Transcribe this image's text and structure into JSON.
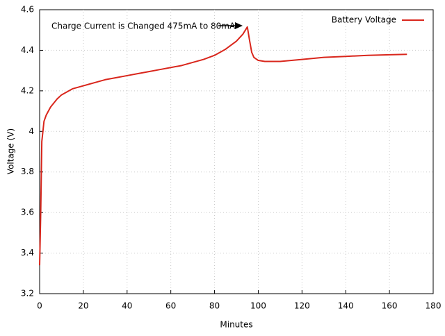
{
  "chart_data": {
    "type": "line",
    "xlabel": "Minutes",
    "ylabel": "Voltage (V)",
    "annotation": "Charge Current is Changed 475mA to 80mA",
    "series": [
      {
        "name": "Battery Voltage",
        "color": "#d9261c",
        "x": [
          0,
          0.5,
          1,
          2,
          3,
          5,
          8,
          10,
          15,
          20,
          25,
          30,
          35,
          40,
          45,
          50,
          55,
          60,
          65,
          70,
          75,
          80,
          85,
          90,
          93,
          95,
          96,
          97,
          98,
          100,
          103,
          110,
          120,
          130,
          140,
          150,
          160,
          168
        ],
        "values": [
          3.34,
          3.6,
          3.95,
          4.05,
          4.08,
          4.12,
          4.16,
          4.18,
          4.21,
          4.225,
          4.24,
          4.255,
          4.265,
          4.275,
          4.285,
          4.295,
          4.305,
          4.315,
          4.325,
          4.34,
          4.355,
          4.375,
          4.405,
          4.445,
          4.48,
          4.515,
          4.45,
          4.39,
          4.365,
          4.35,
          4.345,
          4.345,
          4.355,
          4.365,
          4.37,
          4.375,
          4.378,
          4.38
        ]
      }
    ],
    "xlim": [
      0,
      180
    ],
    "xticks": [
      0,
      20,
      40,
      60,
      80,
      100,
      120,
      140,
      160,
      180
    ],
    "ylim": [
      3.2,
      4.6
    ],
    "yticks": [
      3.2,
      3.4,
      3.6,
      3.8,
      4,
      4.2,
      4.4,
      4.6
    ],
    "grid": true,
    "legend": "top-right"
  }
}
